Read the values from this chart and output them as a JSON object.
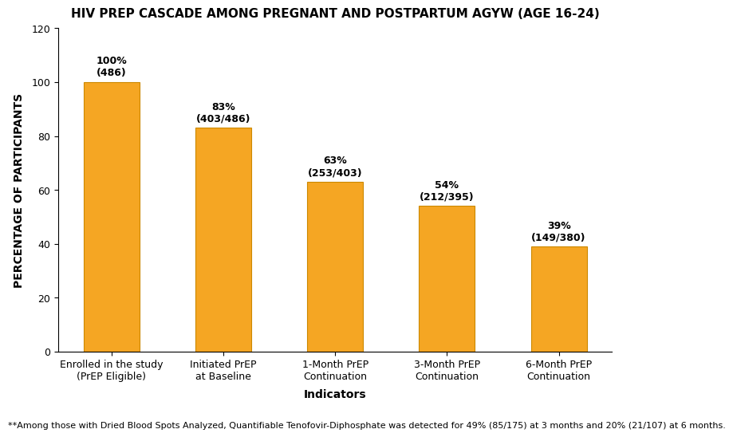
{
  "title": "HIV PREP CASCADE AMONG PREGNANT AND POSTPARTUM AGYW (AGE 16-24)",
  "categories": [
    "Enrolled in the study\n(PrEP Eligible)",
    "Initiated PrEP\nat Baseline",
    "1-Month PrEP\nContinuation",
    "3-Month PrEP\nContinuation",
    "6-Month PrEP\nContinuation"
  ],
  "values": [
    100,
    83,
    63,
    54,
    39
  ],
  "labels_pct": [
    "100%",
    "83%",
    "63%",
    "54%",
    "39%"
  ],
  "labels_frac": [
    "(486)",
    "(403/486)",
    "(253/403)",
    "(212/395)",
    "(149/380)"
  ],
  "bar_color": "#F5A623",
  "bar_edgecolor": "#CC8800",
  "xlabel": "Indicators",
  "ylabel": "PERCENTAGE OF PARTICIPANTS",
  "ylim": [
    0,
    120
  ],
  "yticks": [
    0,
    20,
    40,
    60,
    80,
    100,
    120
  ],
  "footnote": "**Among those with Dried Blood Spots Analyzed, Quantifiable Tenofovir-Diphosphate was detected for 49% (85/175) at 3 months and 20% (21/107) at 6 months.",
  "title_fontsize": 11,
  "label_fontsize": 9,
  "axis_label_fontsize": 10,
  "tick_fontsize": 9,
  "footnote_fontsize": 8,
  "background_color": "#ffffff"
}
